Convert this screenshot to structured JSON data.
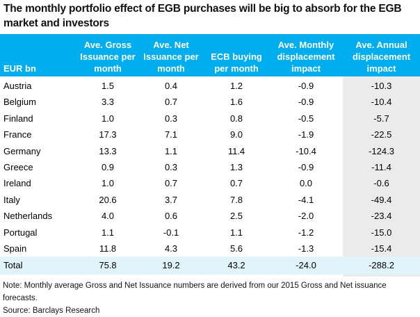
{
  "title": "The monthly portfolio effect of EGB purchases will be big to absorb for the EGB market and investors",
  "columns": [
    "EUR bn",
    "Ave. Gross Issuance per month",
    "Ave. Net Issuance per month",
    "ECB buying per month",
    "Ave. Monthly displacement impact",
    "Ave. Annual displacement impact"
  ],
  "rows": [
    [
      "Austria",
      "1.5",
      "0.4",
      "1.2",
      "-0.9",
      "-10.3"
    ],
    [
      "Belgium",
      "3.3",
      "0.7",
      "1.6",
      "-0.9",
      "-10.4"
    ],
    [
      "Finland",
      "1.0",
      "0.3",
      "0.8",
      "-0.5",
      "-5.7"
    ],
    [
      "France",
      "17.3",
      "7.1",
      "9.0",
      "-1.9",
      "-22.5"
    ],
    [
      "Germany",
      "13.3",
      "1.1",
      "11.4",
      "-10.4",
      "-124.3"
    ],
    [
      "Greece",
      "0.9",
      "0.3",
      "1.3",
      "-0.9",
      "-11.4"
    ],
    [
      "Ireland",
      "1.0",
      "0.7",
      "0.7",
      "0.0",
      "-0.6"
    ],
    [
      "Italy",
      "20.6",
      "3.7",
      "7.8",
      "-4.1",
      "-49.4"
    ],
    [
      "Netherlands",
      "4.0",
      "0.6",
      "2.5",
      "-2.0",
      "-23.4"
    ],
    [
      "Portugal",
      "1.1",
      "-0.1",
      "1.1",
      "-1.2",
      "-15.0"
    ],
    [
      "Spain",
      "11.8",
      "4.3",
      "5.6",
      "-1.3",
      "-15.4"
    ]
  ],
  "total": [
    "Total",
    "75.8",
    "19.2",
    "43.2",
    "-24.0",
    "-288.2"
  ],
  "note": "Note: Monthly average Gross and Net Issuance numbers are derived from our 2015 Gross and Net issuance forecasts.",
  "source": "Source: Barclays Research",
  "colors": {
    "header": "#00aeef",
    "total_row": "#e1f4fc",
    "highlight_column": "#ebebeb"
  }
}
